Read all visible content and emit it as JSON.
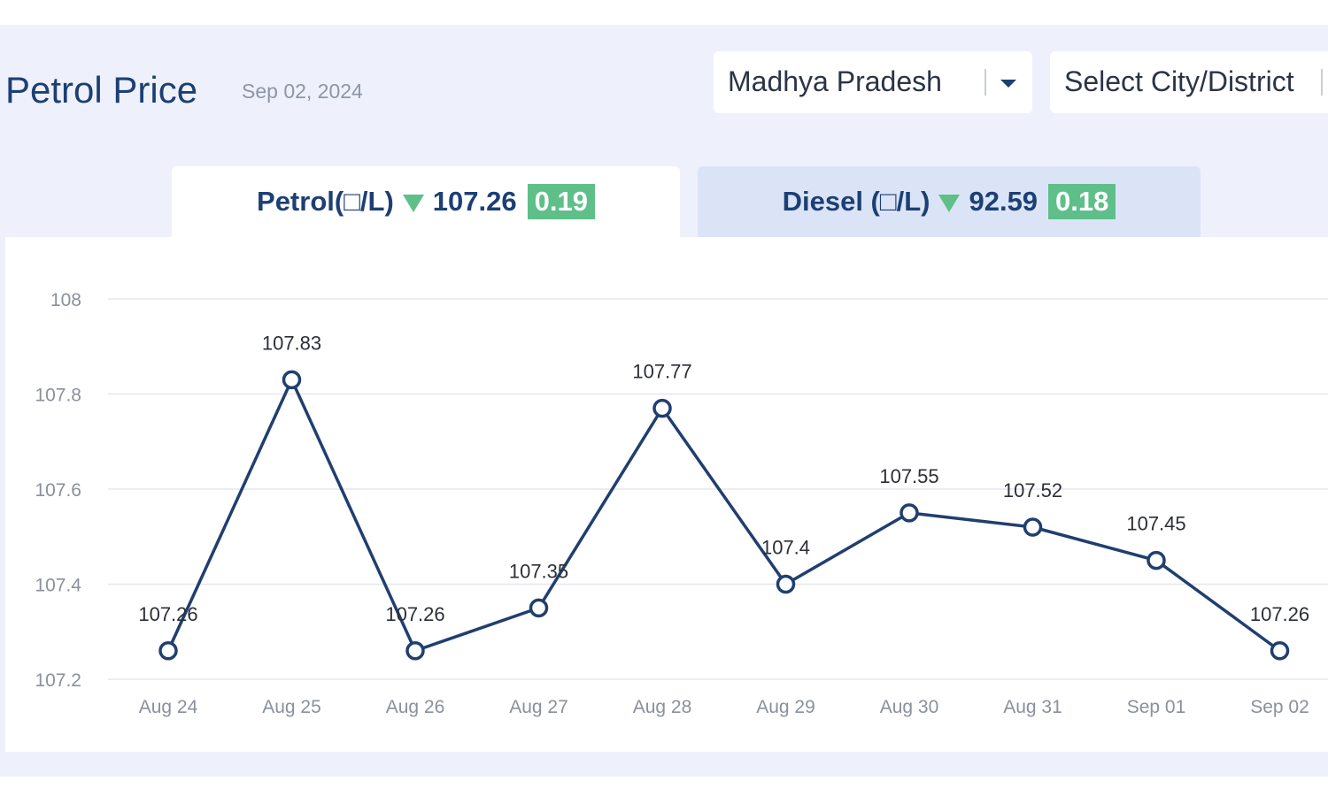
{
  "header": {
    "title": "Petrol Price",
    "date": "Sep 02, 2024"
  },
  "filters": {
    "state": "Madhya Pradesh",
    "city_placeholder": "Select City/District"
  },
  "tabs": {
    "petrol": {
      "label": "Petrol(□/L)",
      "price": "107.26",
      "change": "0.19",
      "trend": "down"
    },
    "diesel": {
      "label": "Diesel (□/L)",
      "price": "92.59",
      "change": "0.18",
      "trend": "down"
    }
  },
  "colors": {
    "title": "#1c3f74",
    "line": "#203f6f",
    "badge": "#5fbf89",
    "grid": "#e4e7ee",
    "tick_text": "#8a909c"
  },
  "chart_data": {
    "type": "line",
    "categories": [
      "Aug 24",
      "Aug 25",
      "Aug 26",
      "Aug 27",
      "Aug 28",
      "Aug 29",
      "Aug 30",
      "Aug 31",
      "Sep 01",
      "Sep 02"
    ],
    "series": [
      {
        "values": [
          107.26,
          107.83,
          107.26,
          107.35,
          107.77,
          107.4,
          107.55,
          107.52,
          107.45,
          107.26
        ]
      }
    ],
    "data_labels": [
      "107.26",
      "107.83",
      "107.26",
      "107.35",
      "107.77",
      "107.4",
      "107.55",
      "107.52",
      "107.45",
      "107.26"
    ],
    "yticks": [
      107.2,
      107.4,
      107.6,
      107.8,
      108
    ],
    "ytick_labels": [
      "107.2",
      "107.4",
      "107.6",
      "107.8",
      "108"
    ],
    "ylim": [
      107.2,
      108
    ],
    "grid": true,
    "title": "",
    "xlabel": "",
    "ylabel": ""
  }
}
